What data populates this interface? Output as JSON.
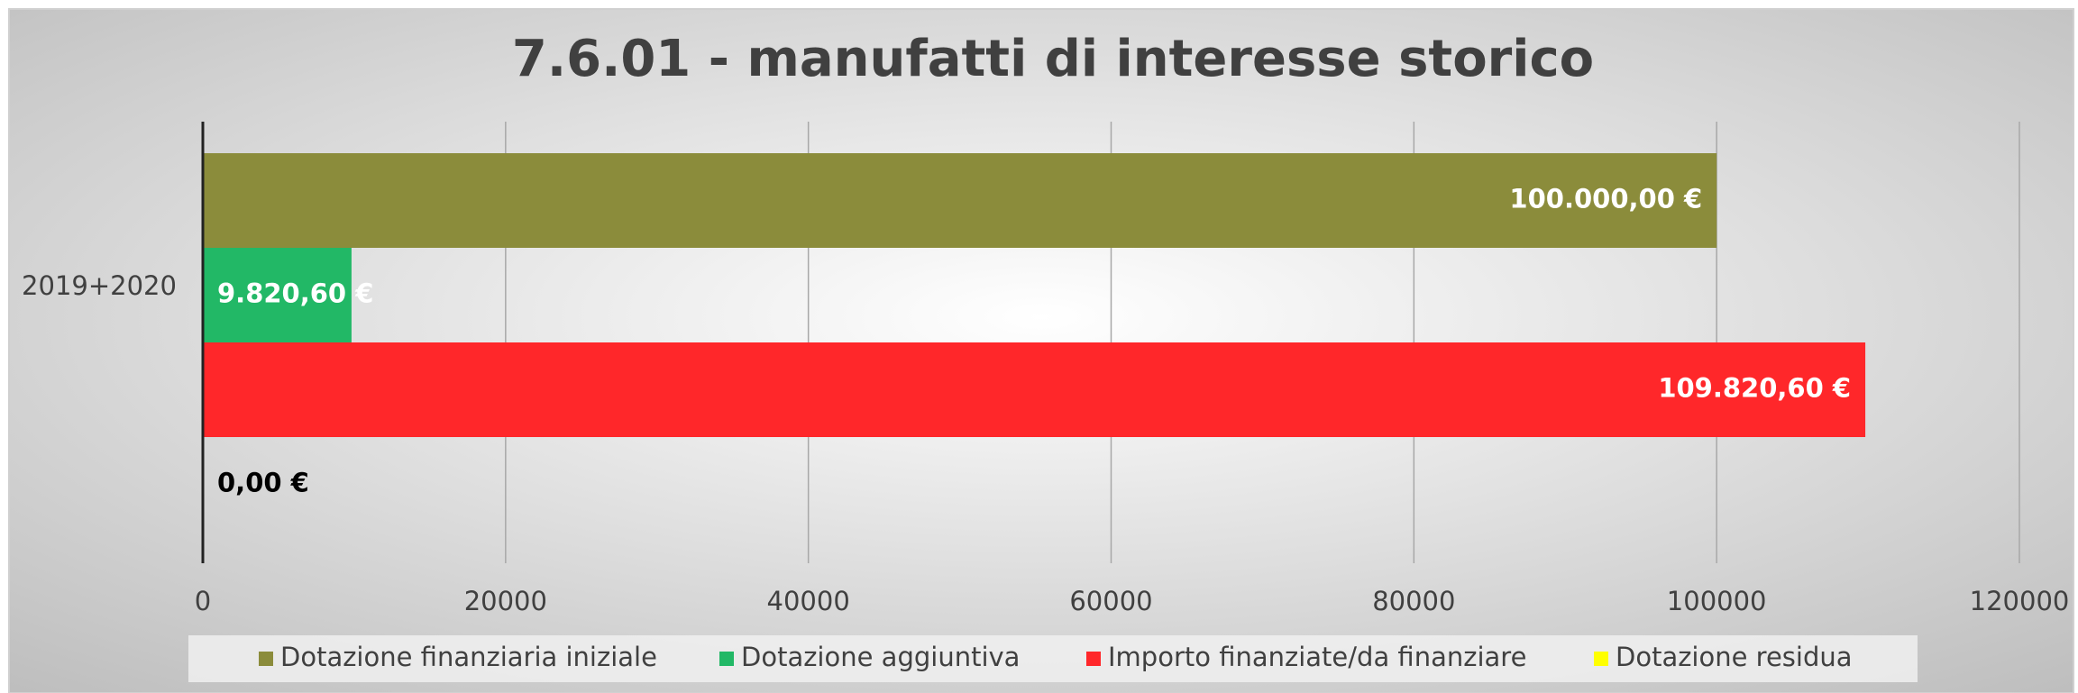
{
  "chart_data": {
    "type": "hbar",
    "title": "7.6.01 - manufatti di interesse storico",
    "categories": [
      "2019+2020"
    ],
    "series": [
      {
        "name": "Dotazione finanziaria iniziale",
        "color": "#8b8c3b",
        "values": [
          100000
        ],
        "value_labels": [
          "100.000,00 €"
        ]
      },
      {
        "name": "Dotazione aggiuntiva",
        "color": "#22b866",
        "values": [
          9820.6
        ],
        "value_labels": [
          "9.820,60 €"
        ]
      },
      {
        "name": "Importo finanziate/da finanziare",
        "color": "#ff272a",
        "values": [
          109820.6
        ],
        "value_labels": [
          "109.820,60 €"
        ]
      },
      {
        "name": "Dotazione  residua",
        "color": "#ffff00",
        "values": [
          0
        ],
        "value_labels": [
          "0,00 €"
        ]
      }
    ],
    "xlim": [
      0,
      120000
    ],
    "xticks": [
      0,
      20000,
      40000,
      60000,
      80000,
      100000,
      120000
    ],
    "grid": true,
    "legend": "bottom"
  }
}
